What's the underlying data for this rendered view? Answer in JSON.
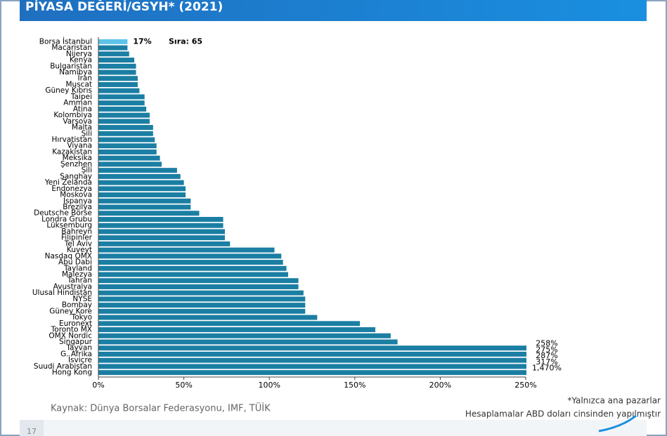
{
  "header": {
    "title": "PİYASA DEĞERİ/GSYH* (2021)"
  },
  "chart_data": {
    "type": "bar",
    "orientation": "horizontal",
    "categories": [
      "Borsa İstanbul",
      "Macaristan",
      "Nijerya",
      "Kenya",
      "Bulgaristan",
      "Namibya",
      "İran",
      "Muscat",
      "Güney Kıbrıs",
      "Taipei",
      "Amman",
      "Atina",
      "Kolombiya",
      "Varşova",
      "Malta",
      "Şili",
      "Hırvatistan",
      "Viyana",
      "Kazakistan",
      "Meksika",
      "Şenzhen",
      "Şili",
      "Şanghay",
      "Yeni Zelanda",
      "Endonezya",
      "Moskova",
      "İspanya",
      "Brezilya",
      "Deutsche Börse",
      "Londra Grubu",
      "Lüksemburg",
      "Bahreyn",
      "Filipinler",
      "Tel Aviv",
      "Kuveyt",
      "Nasdaq OMX",
      "Abu Dabi",
      "Tayland",
      "Malezya",
      "Tahran",
      "Avustralya",
      "Ulusal Hindistan",
      "NYSE",
      "Bombay",
      "Güney Kore",
      "Tokyo",
      "Euronext",
      "Toronto MX",
      "OMX Nordic",
      "Singapur",
      "Tayvan",
      "G. Afrika",
      "İsviçre",
      "Suudi Arabistan",
      "Hong Kong"
    ],
    "values": [
      17,
      17,
      18,
      21,
      22,
      22,
      23,
      23,
      24,
      27,
      27,
      28,
      30,
      30,
      32,
      32,
      33,
      34,
      34,
      36,
      37,
      46,
      48,
      50,
      51,
      51,
      54,
      54,
      59,
      73,
      73,
      74,
      74,
      77,
      103,
      107,
      108,
      110,
      111,
      117,
      117,
      120,
      121,
      121,
      121,
      128,
      153,
      162,
      171,
      175,
      258,
      275,
      287,
      317,
      1470
    ],
    "value_labels": [
      "17%",
      null,
      null,
      null,
      null,
      null,
      null,
      null,
      null,
      null,
      null,
      null,
      null,
      null,
      null,
      null,
      null,
      null,
      null,
      null,
      null,
      null,
      null,
      null,
      null,
      null,
      null,
      null,
      null,
      null,
      null,
      null,
      null,
      null,
      null,
      null,
      null,
      null,
      null,
      null,
      null,
      null,
      null,
      null,
      null,
      null,
      null,
      null,
      null,
      null,
      "258%",
      "275%",
      "287%",
      "317%",
      "1,470%"
    ],
    "color": "#1b7ea3",
    "highlight_color": "#5ec3ea",
    "highlight": "Borsa İstanbul",
    "annotation": "Sıra: 65",
    "xlim": [
      0,
      250
    ],
    "xticks": [
      {
        "value": 0,
        "label": "0%"
      },
      {
        "value": 50,
        "label": "50%"
      },
      {
        "value": 100,
        "label": "100%"
      },
      {
        "value": 150,
        "label": "150%"
      },
      {
        "value": 200,
        "label": "200%"
      },
      {
        "value": 250,
        "label": "250%"
      }
    ]
  },
  "footer": {
    "source": "Kaynak: Dünya Borsalar Federasyonu, IMF, TÜİK",
    "note1": "*Yalnızca ana pazarlar",
    "note2": "Hesaplamalar ABD doları cinsinden yapılmıştır",
    "page": "17"
  }
}
